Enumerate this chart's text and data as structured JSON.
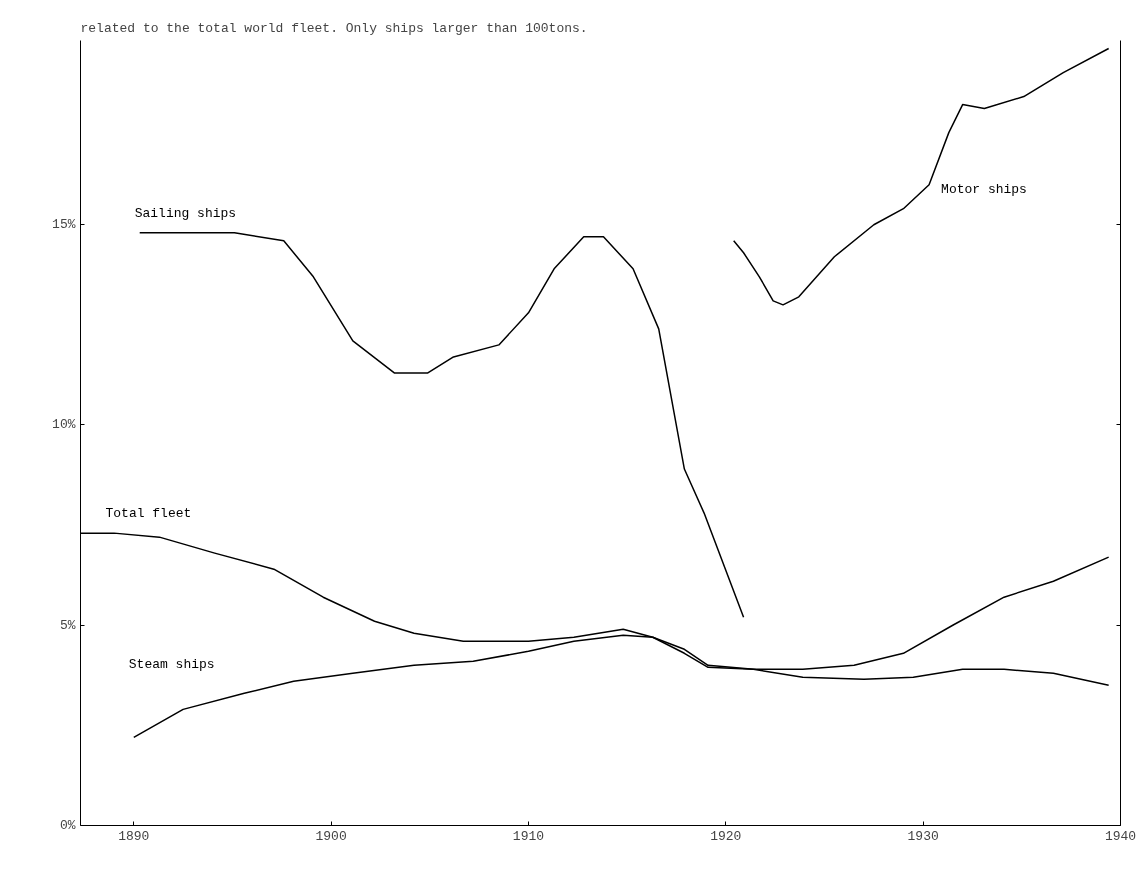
{
  "chart_data": {
    "type": "line",
    "title": "related to the total world fleet. Only ships larger than 100tons.",
    "xlim": [
      1887.3,
      1940
    ],
    "xticks": [
      1890,
      1900,
      1910,
      1920,
      1930,
      1940
    ],
    "ylim": [
      0,
      19.6
    ],
    "yticks": [
      {
        "value": 0,
        "label": "0%"
      },
      {
        "value": 5,
        "label": "5%"
      },
      {
        "value": 10,
        "label": "10%"
      },
      {
        "value": 15,
        "label": "15%"
      }
    ],
    "grid": false,
    "line_style": "solid",
    "series": [
      {
        "name": "Sailing ships",
        "color": "#000000",
        "x": [
          1890.3,
          1895.1,
          1897.6,
          1899.1,
          1901.1,
          1903.2,
          1904.9,
          1906.2,
          1908.5,
          1910.0,
          1911.3,
          1912.8,
          1913.8,
          1915.3,
          1916.6,
          1917.9,
          1918.9,
          1920.9
        ],
        "values": [
          14.8,
          14.8,
          14.6,
          13.7,
          12.1,
          11.3,
          11.3,
          11.7,
          12.0,
          12.8,
          13.9,
          14.7,
          14.7,
          13.9,
          12.4,
          8.9,
          7.8,
          5.2
        ]
      },
      {
        "name": "Motor ships",
        "color": "#000000",
        "x": [
          1920.4,
          1920.9,
          1921.7,
          1922.4,
          1922.9,
          1923.7,
          1925.5,
          1927.5,
          1929.0,
          1930.3,
          1931.3,
          1932.0,
          1933.1,
          1935.1,
          1937.1,
          1939.4
        ],
        "values": [
          14.6,
          14.3,
          13.7,
          13.1,
          13.0,
          13.2,
          14.2,
          15.0,
          15.4,
          16.0,
          17.3,
          18.0,
          17.9,
          18.2,
          18.8,
          19.4
        ]
      },
      {
        "name": "Total fleet",
        "color": "#000000",
        "x": [
          1887.3,
          1889,
          1891.3,
          1894.1,
          1897.1,
          1899.6,
          1902.2,
          1904.2,
          1906.7,
          1910,
          1912.3,
          1914.8,
          1916.3,
          1917.9,
          1919.1,
          1921.4,
          1923.9,
          1926.5,
          1929,
          1931.5,
          1934.1,
          1936.6,
          1939.4
        ],
        "values": [
          7.3,
          7.3,
          7.2,
          6.8,
          6.4,
          5.7,
          5.1,
          4.8,
          4.6,
          4.6,
          4.7,
          4.9,
          4.7,
          4.4,
          4.0,
          3.9,
          3.9,
          4.0,
          4.3,
          5.0,
          5.7,
          6.1,
          6.7
        ]
      },
      {
        "name": "Steam ships",
        "color": "#000000",
        "x": [
          1890,
          1892.5,
          1895.6,
          1898.1,
          1901.1,
          1904.2,
          1907.2,
          1910,
          1912.3,
          1914.8,
          1916.3,
          1917.9,
          1919.1,
          1921.4,
          1923.9,
          1927,
          1929.5,
          1932,
          1934.1,
          1936.6,
          1939.4
        ],
        "values": [
          2.2,
          2.9,
          3.3,
          3.6,
          3.8,
          4.0,
          4.1,
          4.35,
          4.6,
          4.75,
          4.7,
          4.3,
          3.95,
          3.9,
          3.7,
          3.65,
          3.7,
          3.9,
          3.9,
          3.8,
          3.5
        ]
      }
    ]
  }
}
